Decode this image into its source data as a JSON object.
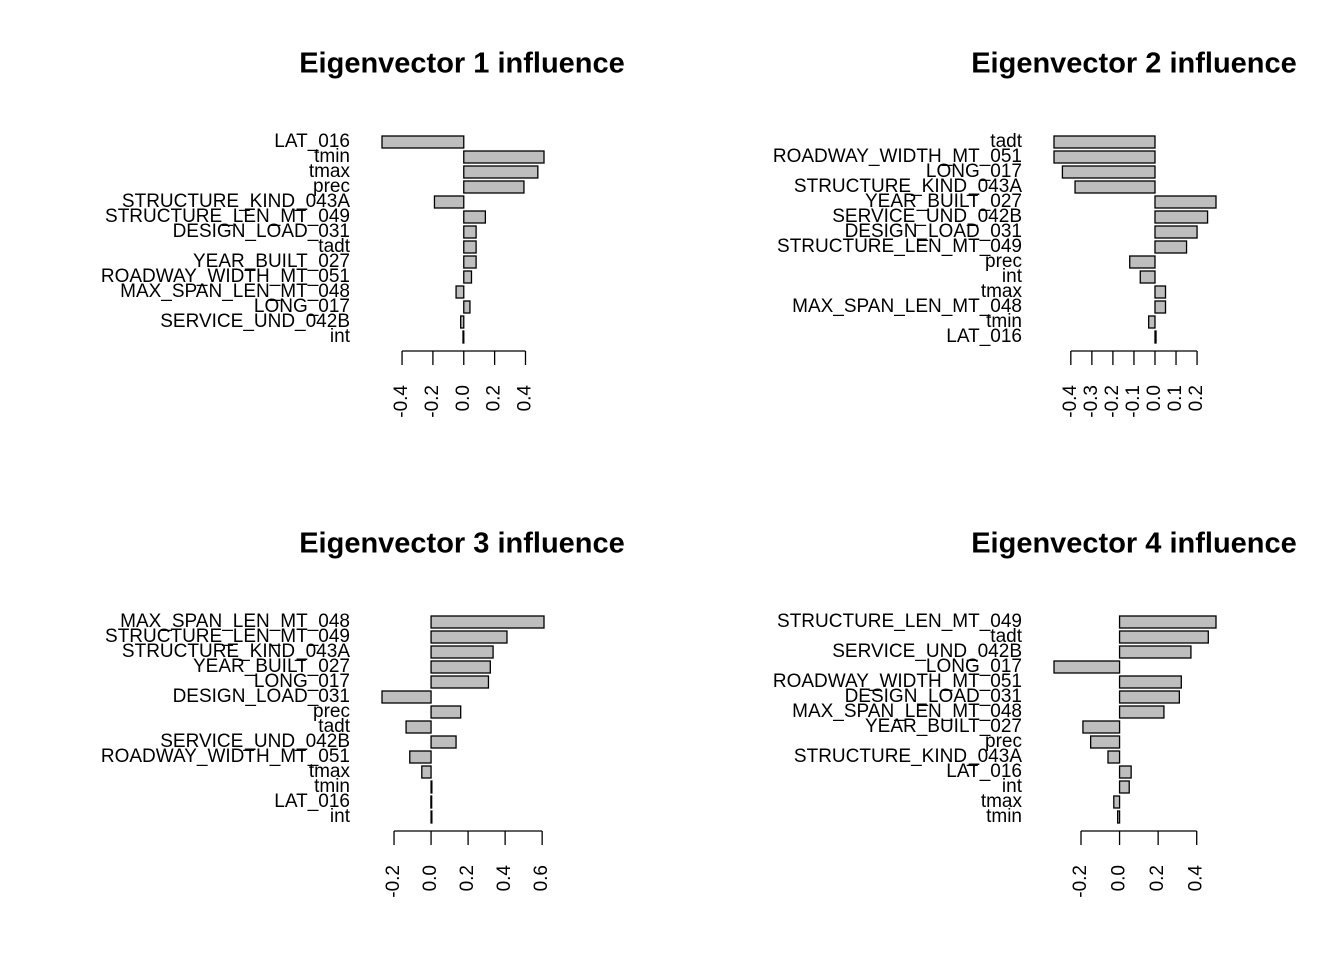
{
  "chart_data": [
    {
      "type": "bar",
      "orientation": "horizontal",
      "title": "Eigenvector 1 influence",
      "color": "#bebebe",
      "categories": [
        "LAT_016",
        "tmin",
        "tmax",
        "prec",
        "STRUCTURE_KIND_043A",
        "STRUCTURE_LEN_MT_049",
        "DESIGN_LOAD_031",
        "tadt",
        "YEAR_BUILT_027",
        "ROADWAY_WIDTH_MT_051",
        "MAX_SPAN_LEN_MT_048",
        "LONG_017",
        "SERVICE_UND_042B",
        "int"
      ],
      "values": [
        -0.53,
        0.52,
        0.48,
        0.39,
        -0.19,
        0.14,
        0.08,
        0.08,
        0.08,
        0.05,
        -0.05,
        0.04,
        -0.02,
        -0.005
      ],
      "xlim": [
        -0.53,
        0.52
      ],
      "xticks": [
        -0.4,
        -0.2,
        {
          "value": 0,
          "label": "0.0"
        },
        0.2,
        0.4
      ]
    },
    {
      "type": "bar",
      "orientation": "horizontal",
      "title": "Eigenvector 2 influence",
      "color": "#bebebe",
      "categories": [
        "tadt",
        "ROADWAY_WIDTH_MT_051",
        "LONG_017",
        "STRUCTURE_KIND_043A",
        "YEAR_BUILT_027",
        "SERVICE_UND_042B",
        "DESIGN_LOAD_031",
        "STRUCTURE_LEN_MT_049",
        "prec",
        "int",
        "tmax",
        "MAX_SPAN_LEN_MT_048",
        "tmin",
        "LAT_016"
      ],
      "values": [
        -0.48,
        -0.48,
        -0.44,
        -0.38,
        0.29,
        0.25,
        0.2,
        0.15,
        -0.12,
        -0.07,
        0.05,
        0.05,
        -0.03,
        0.005
      ],
      "xlim": [
        -0.48,
        0.29
      ],
      "xticks": [
        -0.4,
        -0.3,
        -0.2,
        -0.1,
        {
          "value": 0,
          "label": "0.0"
        },
        0.1,
        0.2
      ]
    },
    {
      "type": "bar",
      "orientation": "horizontal",
      "title": "Eigenvector 3 influence",
      "color": "#bebebe",
      "categories": [
        "MAX_SPAN_LEN_MT_048",
        "STRUCTURE_LEN_MT_049",
        "STRUCTURE_KIND_043A",
        "YEAR_BUILT_027",
        "LONG_017",
        "DESIGN_LOAD_031",
        "prec",
        "tadt",
        "SERVICE_UND_042B",
        "ROADWAY_WIDTH_MT_051",
        "tmax",
        "tmin",
        "LAT_016",
        "int"
      ],
      "values": [
        0.61,
        0.41,
        0.335,
        0.32,
        0.31,
        -0.265,
        0.16,
        -0.135,
        0.135,
        -0.115,
        -0.05,
        0.002,
        -0.001,
        0.001
      ],
      "xlim": [
        -0.265,
        0.61
      ],
      "xticks": [
        -0.2,
        {
          "value": 0,
          "label": "0.0"
        },
        0.2,
        0.4,
        0.6
      ]
    },
    {
      "type": "bar",
      "orientation": "horizontal",
      "title": "Eigenvector 4 influence",
      "color": "#bebebe",
      "categories": [
        "STRUCTURE_LEN_MT_049",
        "tadt",
        "SERVICE_UND_042B",
        "LONG_017",
        "ROADWAY_WIDTH_MT_051",
        "DESIGN_LOAD_031",
        "MAX_SPAN_LEN_MT_048",
        "YEAR_BUILT_027",
        "prec",
        "STRUCTURE_KIND_043A",
        "LAT_016",
        "int",
        "tmax",
        "tmin"
      ],
      "values": [
        0.5,
        0.46,
        0.37,
        -0.34,
        0.32,
        0.31,
        0.23,
        -0.19,
        -0.15,
        -0.06,
        0.06,
        0.05,
        -0.03,
        -0.01
      ],
      "xlim": [
        -0.34,
        0.5
      ],
      "xticks": [
        -0.2,
        {
          "value": 0,
          "label": "0.0"
        },
        0.2,
        0.4
      ]
    }
  ]
}
